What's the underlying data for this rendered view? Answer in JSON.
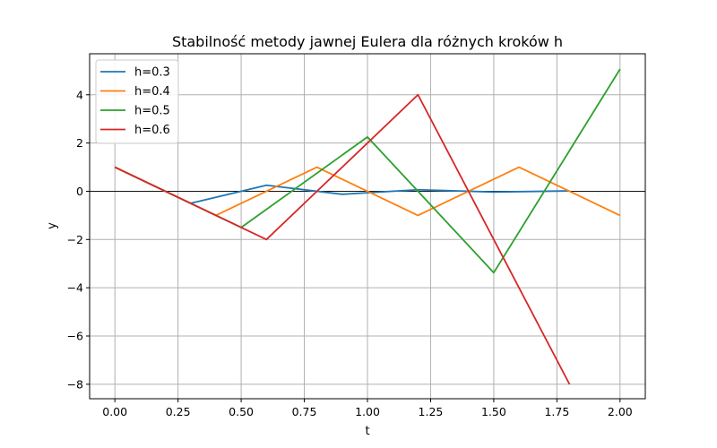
{
  "chart_data": {
    "type": "line",
    "title": "Stabilność metody jawnej Eulera dla różnych kroków h",
    "xlabel": "t",
    "ylabel": "y",
    "xlim": [
      -0.1,
      2.1
    ],
    "ylim": [
      -8.6,
      5.7
    ],
    "xticks": [
      0.0,
      0.25,
      0.5,
      0.75,
      1.0,
      1.25,
      1.5,
      1.75,
      2.0
    ],
    "xtick_labels": [
      "0.00",
      "0.25",
      "0.50",
      "0.75",
      "1.00",
      "1.25",
      "1.50",
      "1.75",
      "2.00"
    ],
    "yticks": [
      -8,
      -6,
      -4,
      -2,
      0,
      2,
      4
    ],
    "ytick_labels": [
      "−8",
      "−6",
      "−4",
      "−2",
      "0",
      "2",
      "4"
    ],
    "grid": true,
    "zero_line": true,
    "legend_position": "top-left",
    "series": [
      {
        "name": "h=0.3",
        "color": "#1f77b4",
        "x": [
          0.0,
          0.3,
          0.6,
          0.9,
          1.2,
          1.5,
          1.8
        ],
        "y": [
          1.0,
          -0.5,
          0.25,
          -0.125,
          0.0625,
          -0.03125,
          0.015625
        ]
      },
      {
        "name": "h=0.4",
        "color": "#ff7f0e",
        "x": [
          0.0,
          0.4,
          0.8,
          1.2,
          1.6,
          2.0
        ],
        "y": [
          1.0,
          -1.0,
          1.0,
          -1.0,
          1.0,
          -1.0
        ]
      },
      {
        "name": "h=0.5",
        "color": "#2ca02c",
        "x": [
          0.0,
          0.5,
          1.0,
          1.5,
          2.0
        ],
        "y": [
          1.0,
          -1.5,
          2.25,
          -3.375,
          5.0625
        ]
      },
      {
        "name": "h=0.6",
        "color": "#d62728",
        "x": [
          0.0,
          0.6,
          1.2,
          1.8
        ],
        "y": [
          1.0,
          -2.0,
          4.0,
          -8.0
        ]
      }
    ]
  }
}
